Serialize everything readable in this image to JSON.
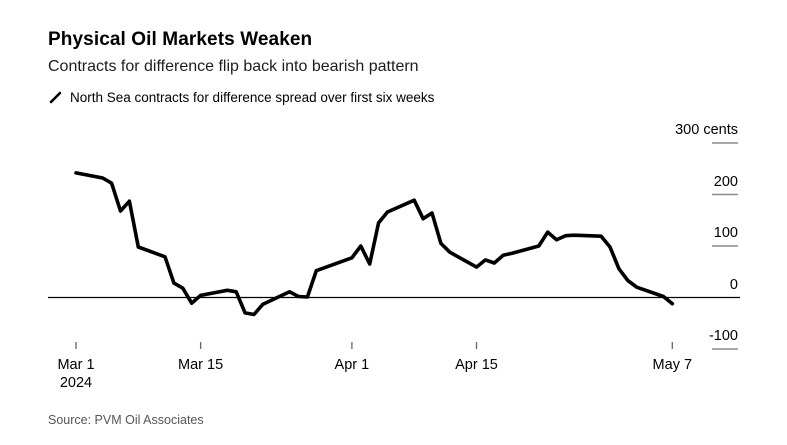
{
  "header": {
    "title": "Physical Oil Markets Weaken",
    "subtitle": "Contracts for difference flip back into bearish pattern"
  },
  "legend": {
    "icon": "line-series-slash-icon",
    "label": "North Sea contracts for difference spread over first six weeks"
  },
  "source": "Source: PVM Oil Associates",
  "colors": {
    "series_line": "#000000",
    "zero_line": "#000000",
    "tick": "#8a8a8a",
    "x_tick": "#666666",
    "text": "#000000",
    "source_text": "#565656"
  },
  "chart_data": {
    "type": "line",
    "title": "Physical Oil Markets Weaken",
    "series_name": "North Sea contracts for difference spread over first six weeks",
    "unit": "cents",
    "ylabel": "cents",
    "ylim": [
      -150,
      310
    ],
    "grid": false,
    "legend_position": "top-left",
    "y_axis_side": "right",
    "x_axis_start_year": "2024",
    "y_ticks": [
      {
        "value": 300,
        "label": "300 cents"
      },
      {
        "value": 200,
        "label": "200"
      },
      {
        "value": 100,
        "label": "100"
      },
      {
        "value": 0,
        "label": "0"
      },
      {
        "value": -100,
        "label": "-100"
      }
    ],
    "x_ticks": [
      {
        "day": 0,
        "label": "Mar 1",
        "sublabel": "2024"
      },
      {
        "day": 14,
        "label": "Mar 15"
      },
      {
        "day": 31,
        "label": "Apr 1"
      },
      {
        "day": 45,
        "label": "Apr 15"
      },
      {
        "day": 67,
        "label": "May 7"
      }
    ],
    "points": [
      {
        "date": "Mar 1",
        "day": 0,
        "value": 242
      },
      {
        "date": "Mar 4",
        "day": 3,
        "value": 232
      },
      {
        "date": "Mar 5",
        "day": 4,
        "value": 222
      },
      {
        "date": "Mar 6",
        "day": 5,
        "value": 168
      },
      {
        "date": "Mar 7",
        "day": 6,
        "value": 187
      },
      {
        "date": "Mar 8",
        "day": 7,
        "value": 98
      },
      {
        "date": "Mar 11",
        "day": 10,
        "value": 79
      },
      {
        "date": "Mar 12",
        "day": 11,
        "value": 28
      },
      {
        "date": "Mar 13",
        "day": 12,
        "value": 18
      },
      {
        "date": "Mar 14",
        "day": 13,
        "value": -11
      },
      {
        "date": "Mar 15",
        "day": 14,
        "value": 4
      },
      {
        "date": "Mar 18",
        "day": 17,
        "value": 14
      },
      {
        "date": "Mar 19",
        "day": 18,
        "value": 11
      },
      {
        "date": "Mar 20",
        "day": 19,
        "value": -30
      },
      {
        "date": "Mar 21",
        "day": 20,
        "value": -33
      },
      {
        "date": "Mar 22",
        "day": 21,
        "value": -13
      },
      {
        "date": "Mar 25",
        "day": 24,
        "value": 11
      },
      {
        "date": "Mar 26",
        "day": 25,
        "value": 2
      },
      {
        "date": "Mar 27",
        "day": 26,
        "value": 1
      },
      {
        "date": "Mar 28",
        "day": 27,
        "value": 52
      },
      {
        "date": "Apr 1",
        "day": 31,
        "value": 77
      },
      {
        "date": "Apr 2",
        "day": 32,
        "value": 100
      },
      {
        "date": "Apr 3",
        "day": 33,
        "value": 65
      },
      {
        "date": "Apr 4",
        "day": 34,
        "value": 145
      },
      {
        "date": "Apr 5",
        "day": 35,
        "value": 166
      },
      {
        "date": "Apr 8",
        "day": 38,
        "value": 189
      },
      {
        "date": "Apr 9",
        "day": 39,
        "value": 153
      },
      {
        "date": "Apr 10",
        "day": 40,
        "value": 164
      },
      {
        "date": "Apr 11",
        "day": 41,
        "value": 105
      },
      {
        "date": "Apr 12",
        "day": 42,
        "value": 88
      },
      {
        "date": "Apr 15",
        "day": 45,
        "value": 59
      },
      {
        "date": "Apr 16",
        "day": 46,
        "value": 73
      },
      {
        "date": "Apr 17",
        "day": 47,
        "value": 67
      },
      {
        "date": "Apr 18",
        "day": 48,
        "value": 82
      },
      {
        "date": "Apr 19",
        "day": 49,
        "value": 86
      },
      {
        "date": "Apr 22",
        "day": 52,
        "value": 100
      },
      {
        "date": "Apr 23",
        "day": 53,
        "value": 127
      },
      {
        "date": "Apr 24",
        "day": 54,
        "value": 112
      },
      {
        "date": "Apr 25",
        "day": 55,
        "value": 120
      },
      {
        "date": "Apr 26",
        "day": 56,
        "value": 121
      },
      {
        "date": "Apr 29",
        "day": 59,
        "value": 119
      },
      {
        "date": "Apr 30",
        "day": 60,
        "value": 98
      },
      {
        "date": "May 1",
        "day": 61,
        "value": 56
      },
      {
        "date": "May 2",
        "day": 62,
        "value": 33
      },
      {
        "date": "May 3",
        "day": 63,
        "value": 20
      },
      {
        "date": "May 6",
        "day": 66,
        "value": 2
      },
      {
        "date": "May 7",
        "day": 67,
        "value": -12
      }
    ]
  }
}
